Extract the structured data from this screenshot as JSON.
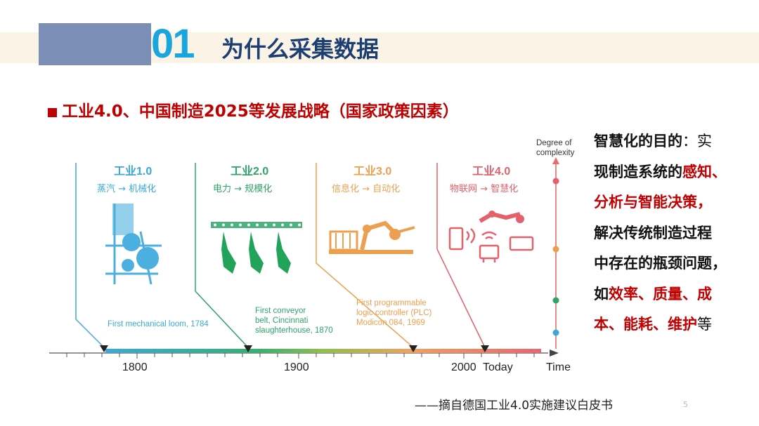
{
  "header": {
    "number": "01",
    "title": "为什么采集数据"
  },
  "subtitle": "工业4.0、中国制造2025等发展战略（国家政策因素）",
  "eras": [
    {
      "title": "工业1.0",
      "from": "蒸汽",
      "to": "机械化",
      "color": "#3aa9da"
    },
    {
      "title": "工业2.0",
      "from": "电力",
      "to": "规模化",
      "color": "#2ea36a"
    },
    {
      "title": "工业3.0",
      "from": "信息化",
      "to": "自动化",
      "color": "#eca04f"
    },
    {
      "title": "工业4.0",
      "from": "物联网",
      "to": "智慧化",
      "color": "#e4606a"
    }
  ],
  "arrow_glyph": "→",
  "milestones": [
    {
      "lines": [
        "First mechanical loom, 1784"
      ],
      "color": "#3aa9da"
    },
    {
      "lines": [
        "First conveyor",
        "belt, Cincinnati",
        "slaughterhouse, 1870"
      ],
      "color": "#2ea36a"
    },
    {
      "lines": [
        "First programmable",
        "logic controller (PLC)",
        "Modicon 084, 1969"
      ],
      "color": "#eca04f"
    }
  ],
  "axis": {
    "years": [
      "1800",
      "1900",
      "2000"
    ],
    "today": "Today",
    "x_label": "Time",
    "y_label_lines": [
      "Degree of",
      "complexity"
    ]
  },
  "right_panel": {
    "line1_bold": "智慧化的目的",
    "line1_rest": "：实",
    "line2_a": "现制造系统的",
    "line2_b": "感知、",
    "line3": "分析与智能决策，",
    "line4": "解决传统制造过程",
    "line5": "中存在的瓶颈问题，",
    "line6_a": "如",
    "line6_b": "效率、质量、成",
    "line7_a": "本、能耗、维护",
    "line7_b": "等"
  },
  "source": "——摘自德国工业4.0实施建议白皮书",
  "page_number": "5"
}
